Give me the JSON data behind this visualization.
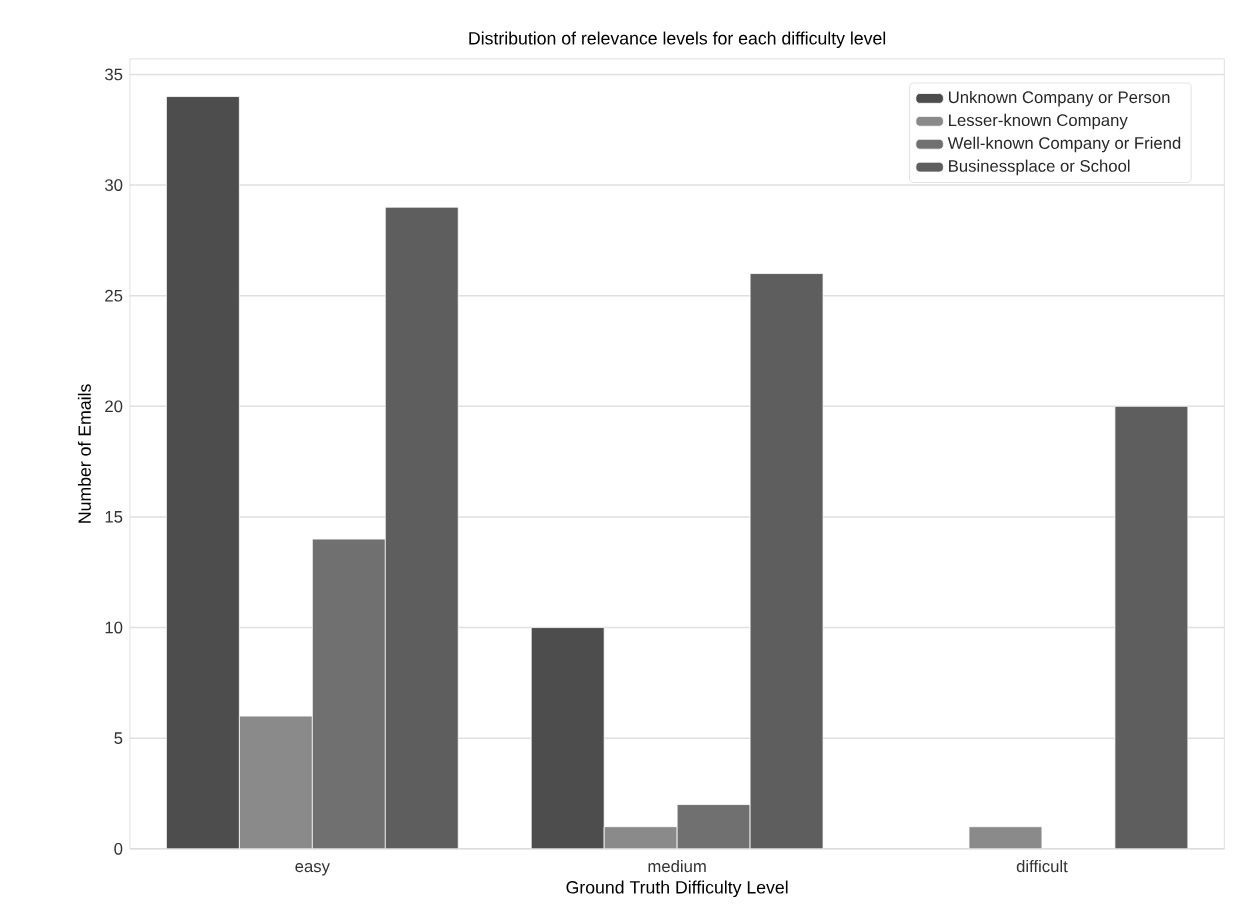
{
  "chart_data": {
    "type": "bar",
    "title": "Distribution of relevance levels for each difficulty level",
    "xlabel": "Ground Truth Difficulty Level",
    "ylabel": "Number of Emails",
    "categories": [
      "easy",
      "medium",
      "difficult"
    ],
    "series": [
      {
        "name": "Unknown Company or Person",
        "color": "#4d4d4d",
        "values": [
          34,
          10,
          null
        ]
      },
      {
        "name": "Lesser-known Company",
        "color": "#8a8a8a",
        "values": [
          6,
          1,
          1
        ]
      },
      {
        "name": "Well-known Company or Friend",
        "color": "#707070",
        "values": [
          14,
          2,
          null
        ]
      },
      {
        "name": "Businessplace or School",
        "color": "#5e5e5e",
        "values": [
          29,
          26,
          20
        ]
      }
    ],
    "ylim": [
      0,
      35.7
    ],
    "yticks": [
      0,
      5,
      10,
      15,
      20,
      25,
      30,
      35
    ],
    "grid": "y",
    "legend": "top right"
  }
}
